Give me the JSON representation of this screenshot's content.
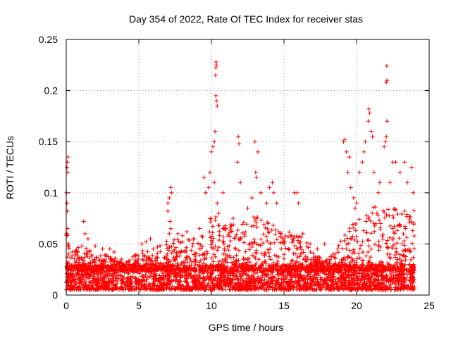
{
  "chart_data": {
    "type": "scatter",
    "title": "Day 354 of 2022, Rate Of TEC Index for receiver stas",
    "xlabel": "GPS time / hours",
    "ylabel": "ROTI / TECUs",
    "xlim": [
      0,
      25
    ],
    "ylim": [
      0,
      0.25
    ],
    "xticks": [
      "0",
      "5",
      "10",
      "15",
      "20",
      "25"
    ],
    "xtick_values": [
      0,
      5,
      10,
      15,
      20,
      25
    ],
    "yticks": [
      "0",
      "0.05",
      "0.1",
      "0.15",
      "0.2",
      "0.25"
    ],
    "ytick_values": [
      0,
      0.05,
      0.1,
      0.15,
      0.2,
      0.25
    ],
    "grid": true,
    "marker": "plus",
    "series": [
      {
        "name": "ROTI",
        "color": "#ff0000",
        "background_band": {
          "x_start": 0,
          "x_end": 24,
          "y_low": 0.005,
          "y_high": 0.03,
          "density": "dense"
        },
        "points": [
          [
            0.05,
            0.125
          ],
          [
            0.08,
            0.13
          ],
          [
            0.12,
            0.135
          ],
          [
            0.1,
            0.12
          ],
          [
            0.02,
            0.1
          ],
          [
            0.05,
            0.09
          ],
          [
            0.08,
            0.082
          ],
          [
            0.1,
            0.065
          ],
          [
            0.02,
            0.06
          ],
          [
            0.15,
            0.05
          ],
          [
            1.2,
            0.072
          ],
          [
            1.3,
            0.06
          ],
          [
            1.5,
            0.055
          ],
          [
            2.0,
            0.048
          ],
          [
            2.5,
            0.045
          ],
          [
            3.0,
            0.045
          ],
          [
            3.3,
            0.042
          ],
          [
            3.8,
            0.035
          ],
          [
            5.2,
            0.05
          ],
          [
            5.5,
            0.052
          ],
          [
            5.8,
            0.055
          ],
          [
            6.0,
            0.045
          ],
          [
            7.0,
            0.09
          ],
          [
            7.1,
            0.095
          ],
          [
            7.2,
            0.105
          ],
          [
            7.25,
            0.1
          ],
          [
            7.0,
            0.082
          ],
          [
            7.15,
            0.072
          ],
          [
            7.2,
            0.065
          ],
          [
            7.1,
            0.06
          ],
          [
            7.7,
            0.06
          ],
          [
            8.0,
            0.058
          ],
          [
            8.3,
            0.062
          ],
          [
            8.8,
            0.055
          ],
          [
            9.2,
            0.065
          ],
          [
            9.5,
            0.115
          ],
          [
            9.6,
            0.1
          ],
          [
            9.8,
            0.105
          ],
          [
            9.9,
            0.12
          ],
          [
            10.0,
            0.14
          ],
          [
            10.1,
            0.145
          ],
          [
            10.2,
            0.15
          ],
          [
            10.25,
            0.16
          ],
          [
            10.3,
            0.195
          ],
          [
            10.35,
            0.19
          ],
          [
            10.4,
            0.185
          ],
          [
            10.28,
            0.215
          ],
          [
            10.3,
            0.222
          ],
          [
            10.35,
            0.225
          ],
          [
            10.32,
            0.228
          ],
          [
            10.2,
            0.11
          ],
          [
            10.4,
            0.09
          ],
          [
            10.5,
            0.08
          ],
          [
            10.8,
            0.1
          ],
          [
            11.0,
            0.065
          ],
          [
            11.5,
            0.075
          ],
          [
            11.8,
            0.13
          ],
          [
            11.85,
            0.155
          ],
          [
            11.9,
            0.148
          ],
          [
            12.0,
            0.11
          ],
          [
            12.5,
            0.085
          ],
          [
            12.8,
            0.095
          ],
          [
            13.0,
            0.15
          ],
          [
            13.05,
            0.12
          ],
          [
            13.1,
            0.115
          ],
          [
            13.2,
            0.14
          ],
          [
            13.4,
            0.1
          ],
          [
            13.8,
            0.09
          ],
          [
            14.0,
            0.105
          ],
          [
            14.2,
            0.11
          ],
          [
            14.3,
            0.1
          ],
          [
            14.5,
            0.09
          ],
          [
            14.8,
            0.06
          ],
          [
            15.0,
            0.055
          ],
          [
            15.7,
            0.1
          ],
          [
            15.9,
            0.1
          ],
          [
            16.0,
            0.09
          ],
          [
            16.3,
            0.06
          ],
          [
            16.8,
            0.05
          ],
          [
            17.3,
            0.045
          ],
          [
            17.8,
            0.05
          ],
          [
            18.4,
            0.04
          ],
          [
            19.1,
            0.15
          ],
          [
            19.2,
            0.152
          ],
          [
            19.3,
            0.14
          ],
          [
            19.5,
            0.135
          ],
          [
            19.4,
            0.12
          ],
          [
            19.6,
            0.105
          ],
          [
            19.8,
            0.095
          ],
          [
            19.9,
            0.085
          ],
          [
            20.0,
            0.09
          ],
          [
            20.2,
            0.12
          ],
          [
            20.4,
            0.13
          ],
          [
            20.5,
            0.14
          ],
          [
            20.6,
            0.15
          ],
          [
            20.8,
            0.17
          ],
          [
            20.85,
            0.182
          ],
          [
            20.9,
            0.178
          ],
          [
            21.0,
            0.16
          ],
          [
            21.1,
            0.155
          ],
          [
            21.2,
            0.12
          ],
          [
            21.4,
            0.08
          ],
          [
            21.5,
            0.1
          ],
          [
            21.6,
            0.11
          ],
          [
            21.9,
            0.145
          ],
          [
            22.0,
            0.15
          ],
          [
            22.05,
            0.155
          ],
          [
            22.1,
            0.17
          ],
          [
            22.05,
            0.208
          ],
          [
            22.1,
            0.21
          ],
          [
            22.08,
            0.224
          ],
          [
            22.3,
            0.11
          ],
          [
            22.5,
            0.13
          ],
          [
            22.7,
            0.13
          ],
          [
            23.0,
            0.12
          ],
          [
            23.3,
            0.13
          ],
          [
            23.5,
            0.11
          ],
          [
            23.8,
            0.125
          ],
          [
            23.9,
            0.1
          ]
        ],
        "activity_envelope": [
          [
            0.0,
            0.065
          ],
          [
            0.5,
            0.045
          ],
          [
            1.0,
            0.05
          ],
          [
            1.5,
            0.045
          ],
          [
            2.0,
            0.04
          ],
          [
            3.0,
            0.04
          ],
          [
            4.0,
            0.03
          ],
          [
            5.0,
            0.045
          ],
          [
            6.0,
            0.045
          ],
          [
            7.0,
            0.055
          ],
          [
            8.0,
            0.055
          ],
          [
            9.0,
            0.055
          ],
          [
            10.0,
            0.08
          ],
          [
            11.0,
            0.07
          ],
          [
            12.0,
            0.07
          ],
          [
            13.0,
            0.08
          ],
          [
            14.0,
            0.075
          ],
          [
            15.0,
            0.06
          ],
          [
            16.0,
            0.065
          ],
          [
            17.0,
            0.045
          ],
          [
            18.0,
            0.035
          ],
          [
            19.0,
            0.055
          ],
          [
            20.0,
            0.075
          ],
          [
            21.0,
            0.085
          ],
          [
            22.0,
            0.09
          ],
          [
            23.0,
            0.09
          ],
          [
            24.0,
            0.085
          ]
        ]
      }
    ]
  }
}
